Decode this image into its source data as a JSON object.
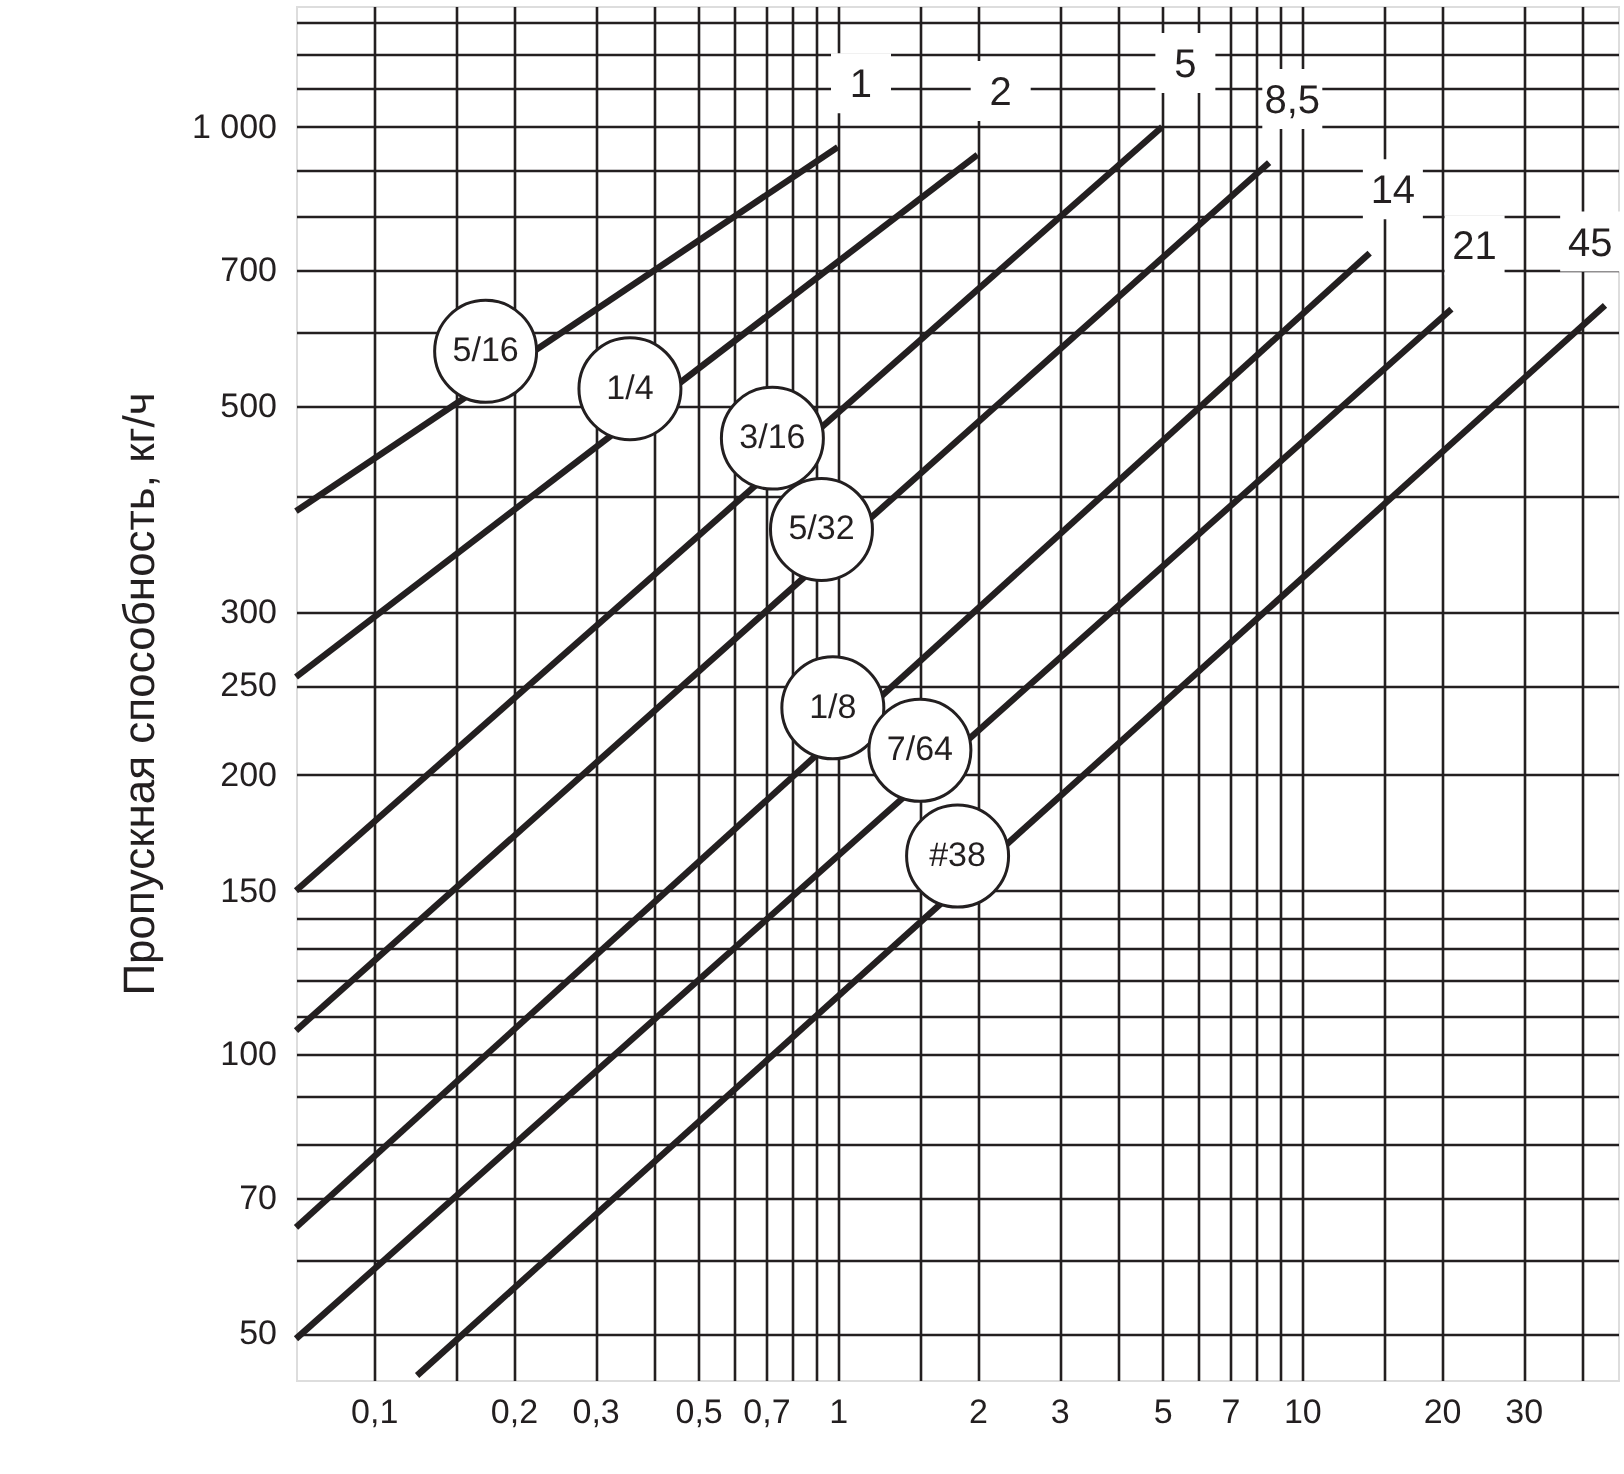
{
  "chart_data": {
    "type": "line",
    "ylabel": "Пропускная способность, кг/ч",
    "log": "xy",
    "grid": true,
    "line_style": "solid",
    "marker": "none",
    "xlim": [
      0.068,
      48
    ],
    "ylim": [
      44.5,
      1350
    ],
    "xticks": [
      {
        "value": 0.1,
        "label": "0,1"
      },
      {
        "value": 0.15,
        "label": null
      },
      {
        "value": 0.2,
        "label": "0,2"
      },
      {
        "value": 0.3,
        "label": "0,3"
      },
      {
        "value": 0.4,
        "label": null
      },
      {
        "value": 0.5,
        "label": "0,5"
      },
      {
        "value": 0.6,
        "label": null
      },
      {
        "value": 0.7,
        "label": "0,7"
      },
      {
        "value": 0.8,
        "label": null
      },
      {
        "value": 0.9,
        "label": null
      },
      1,
      {
        "value": 1.5,
        "label": null
      },
      2,
      3,
      {
        "value": 4,
        "label": null
      },
      5,
      {
        "value": 6,
        "label": null
      },
      7,
      {
        "value": 8,
        "label": null
      },
      {
        "value": 9,
        "label": null
      },
      10,
      {
        "value": 15,
        "label": null
      },
      20,
      30,
      {
        "value": 40,
        "label": null
      }
    ],
    "yticks": [
      50,
      {
        "value": 60,
        "label": null
      },
      70,
      {
        "value": 80,
        "label": null
      },
      {
        "value": 90,
        "label": null
      },
      100,
      {
        "value": 110,
        "label": null
      },
      {
        "value": 120,
        "label": null
      },
      {
        "value": 130,
        "label": null
      },
      {
        "value": 140,
        "label": null
      },
      150,
      200,
      250,
      300,
      {
        "value": 400,
        "label": null
      },
      500,
      {
        "value": 600,
        "label": null
      },
      700,
      {
        "value": 800,
        "label": null
      },
      {
        "value": 900,
        "label": null
      },
      {
        "value": 1000,
        "label": "1 000"
      },
      {
        "value": 1100,
        "label": null
      },
      {
        "value": 1200,
        "label": null
      },
      {
        "value": 1300,
        "label": null
      }
    ],
    "series": [
      {
        "name": "5/16",
        "color": "#231f20",
        "x": [
          0.068,
          1
        ],
        "values": [
          385,
          951
        ]
      },
      {
        "name": "1/4",
        "color": "#231f20",
        "x": [
          0.068,
          2
        ],
        "values": [
          255,
          933
        ]
      },
      {
        "name": "3/16",
        "color": "#231f20",
        "x": [
          0.068,
          5
        ],
        "values": [
          150,
          1000
        ]
      },
      {
        "name": "5/32",
        "color": "#231f20",
        "x": [
          0.068,
          8.5
        ],
        "values": [
          106,
          915
        ]
      },
      {
        "name": "1/8",
        "color": "#231f20",
        "x": [
          0.068,
          14
        ],
        "values": [
          65,
          731
        ]
      },
      {
        "name": "7/64",
        "color": "#231f20",
        "x": [
          0.068,
          21
        ],
        "values": [
          49.3,
          636
        ]
      },
      {
        "name": "#38",
        "color": "#231f20",
        "x": [
          0.124,
          45
        ],
        "values": [
          45,
          642
        ]
      }
    ],
    "annotations": [
      "1",
      "2",
      "5",
      "8,5",
      "14",
      "21",
      "45"
    ]
  }
}
